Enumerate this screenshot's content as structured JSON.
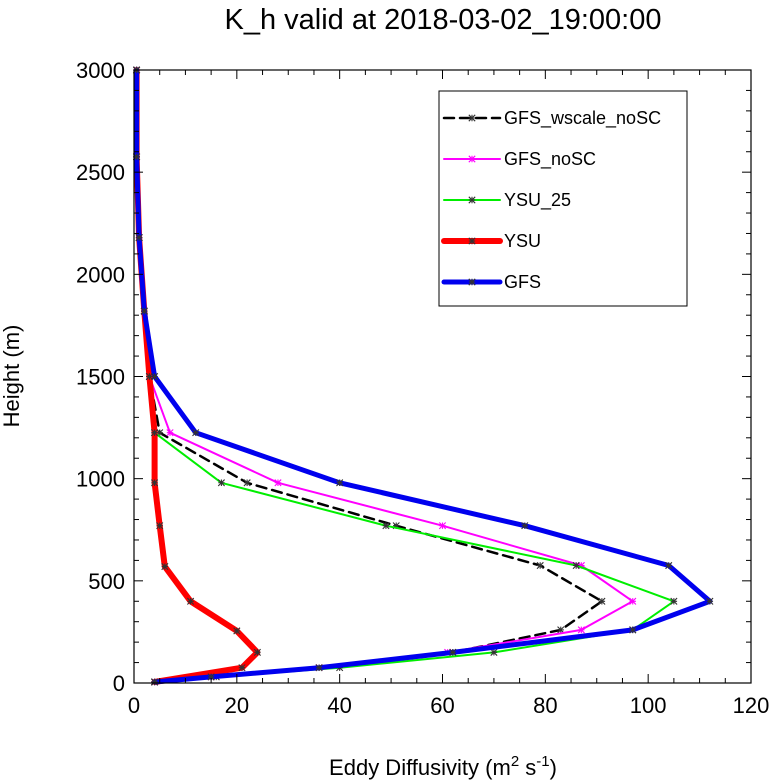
{
  "chart_data": {
    "type": "line",
    "title": "K_h valid at 2018-03-02_19:00:00",
    "xlabel": "Eddy Diffusivity",
    "xlabel_units": {
      "base": "m",
      "exp1": "2",
      "mid": " s",
      "exp2": "-1"
    },
    "ylabel": "Height (m)",
    "xlim": [
      0,
      120
    ],
    "ylim": [
      0,
      3000
    ],
    "x_ticks": [
      0,
      20,
      40,
      60,
      80,
      100,
      120
    ],
    "y_ticks": [
      0,
      500,
      1000,
      1500,
      2000,
      2500,
      3000
    ],
    "grid": false,
    "legend_position": "top-right",
    "series": [
      {
        "name": "GFS_wscale_noSC",
        "color": "#000000",
        "line_width": 2.5,
        "dash": "10,6",
        "points": [
          [
            4,
            5
          ],
          [
            15,
            30
          ],
          [
            36,
            75
          ],
          [
            62,
            150
          ],
          [
            83,
            260
          ],
          [
            91,
            400
          ],
          [
            79,
            575
          ],
          [
            51,
            770
          ],
          [
            22,
            980
          ],
          [
            5,
            1225
          ],
          [
            3,
            1500
          ],
          [
            2,
            1820
          ],
          [
            1,
            2180
          ],
          [
            0.5,
            2575
          ],
          [
            0.5,
            3000
          ]
        ]
      },
      {
        "name": "GFS_noSC",
        "color": "#ff00ff",
        "line_width": 2,
        "dash": "",
        "points": [
          [
            4,
            5
          ],
          [
            15,
            30
          ],
          [
            36,
            75
          ],
          [
            61,
            150
          ],
          [
            87,
            260
          ],
          [
            97,
            400
          ],
          [
            87,
            575
          ],
          [
            60,
            770
          ],
          [
            28,
            980
          ],
          [
            7,
            1225
          ],
          [
            3,
            1500
          ],
          [
            2,
            1820
          ],
          [
            1,
            2180
          ],
          [
            0.5,
            2575
          ],
          [
            0.5,
            3000
          ]
        ]
      },
      {
        "name": "YSU_25",
        "color": "#00ee00",
        "line_width": 2,
        "dash": "",
        "points": [
          [
            4,
            5
          ],
          [
            16,
            30
          ],
          [
            40,
            75
          ],
          [
            70,
            150
          ],
          [
            97,
            260
          ],
          [
            105,
            400
          ],
          [
            86,
            575
          ],
          [
            49,
            770
          ],
          [
            17,
            980
          ],
          [
            4,
            1225
          ],
          [
            3,
            1500
          ],
          [
            2,
            1820
          ],
          [
            1,
            2180
          ],
          [
            0.5,
            2575
          ],
          [
            0.5,
            3000
          ]
        ]
      },
      {
        "name": "YSU",
        "color": "#ff0000",
        "line_width": 6,
        "dash": "",
        "points": [
          [
            4,
            5
          ],
          [
            21,
            75
          ],
          [
            24,
            150
          ],
          [
            20,
            255
          ],
          [
            11,
            400
          ],
          [
            6,
            570
          ],
          [
            5,
            770
          ],
          [
            4,
            980
          ],
          [
            4,
            1225
          ],
          [
            3,
            1500
          ],
          [
            2,
            1820
          ],
          [
            1,
            2180
          ],
          [
            0.5,
            2575
          ],
          [
            0.5,
            3000
          ]
        ]
      },
      {
        "name": "GFS",
        "color": "#0000ee",
        "line_width": 5,
        "dash": "",
        "points": [
          [
            4,
            5
          ],
          [
            15,
            30
          ],
          [
            36,
            75
          ],
          [
            62,
            150
          ],
          [
            97,
            260
          ],
          [
            112,
            400
          ],
          [
            104,
            575
          ],
          [
            76,
            770
          ],
          [
            40,
            980
          ],
          [
            12,
            1225
          ],
          [
            4,
            1500
          ],
          [
            2,
            1820
          ],
          [
            1,
            2180
          ],
          [
            0.5,
            2575
          ],
          [
            0.5,
            3000
          ]
        ]
      }
    ]
  }
}
